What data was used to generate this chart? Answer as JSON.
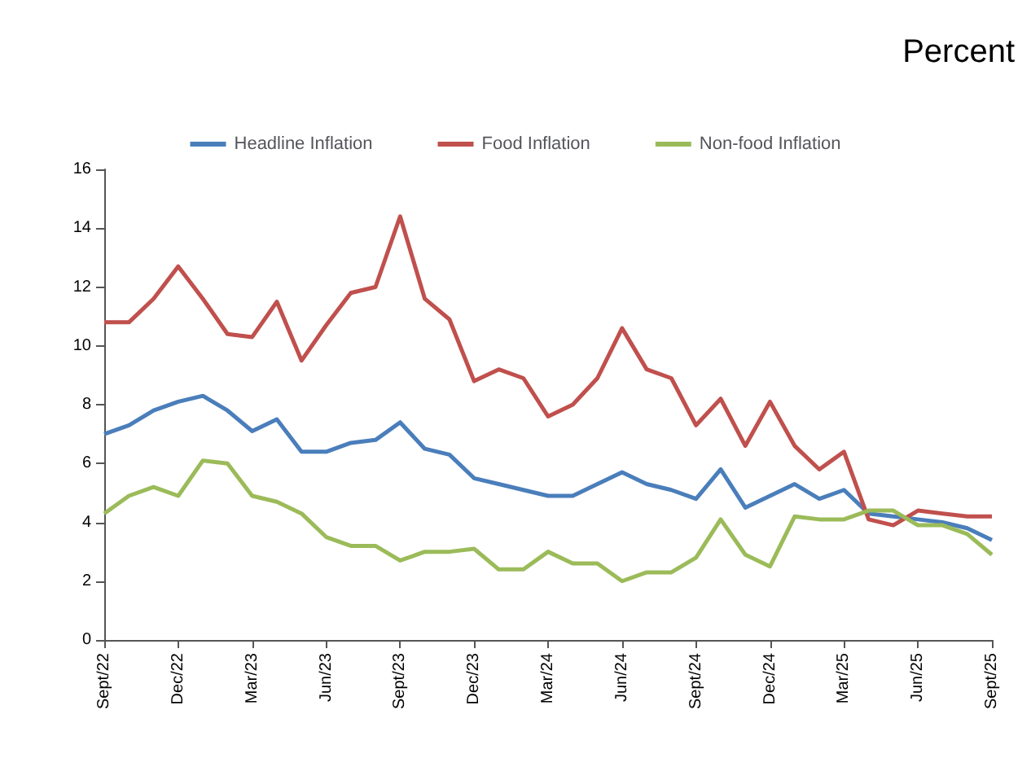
{
  "chart_data": {
    "type": "line",
    "ylabel": "Percent",
    "categories": [
      "Sept/22",
      null,
      null,
      "Dec/22",
      null,
      null,
      "Mar/23",
      null,
      null,
      "Jun/23",
      null,
      null,
      "Sept/23",
      null,
      null,
      "Dec/23",
      null,
      null,
      "Mar/24",
      null,
      null,
      "Jun/24",
      null,
      null,
      "Sept/24",
      null,
      null,
      "Dec/24",
      null,
      null,
      "Mar/25",
      null,
      null,
      "Jun/25",
      null,
      null,
      "Sept/25"
    ],
    "series": [
      {
        "name": "Headline Inflation",
        "color": "#4a7ebb",
        "values": [
          7.0,
          7.3,
          7.8,
          8.1,
          8.3,
          7.8,
          7.1,
          7.5,
          6.4,
          6.4,
          6.7,
          6.8,
          7.4,
          6.5,
          6.3,
          5.5,
          5.3,
          5.1,
          4.9,
          4.9,
          5.3,
          5.7,
          5.3,
          5.1,
          4.8,
          5.8,
          4.5,
          4.9,
          5.3,
          4.8,
          5.1,
          4.3,
          4.2,
          4.1,
          4.0,
          3.8,
          3.4
        ]
      },
      {
        "name": "Food Inflation",
        "color": "#c0504d",
        "values": [
          10.8,
          10.8,
          11.6,
          12.7,
          11.6,
          10.4,
          10.3,
          11.5,
          9.5,
          10.7,
          11.8,
          12.0,
          14.4,
          11.6,
          10.9,
          8.8,
          9.2,
          8.9,
          7.6,
          8.0,
          8.9,
          10.6,
          9.2,
          8.9,
          7.3,
          8.2,
          6.6,
          8.1,
          6.6,
          5.8,
          6.4,
          4.1,
          3.9,
          4.4,
          4.3,
          4.2,
          4.2
        ]
      },
      {
        "name": "Non-food Inflation",
        "color": "#9bbb59",
        "values": [
          4.3,
          4.9,
          5.2,
          4.9,
          6.1,
          6.0,
          4.9,
          4.7,
          4.3,
          3.5,
          3.2,
          3.2,
          2.7,
          3.0,
          3.0,
          3.1,
          2.4,
          2.4,
          3.0,
          2.6,
          2.6,
          2.0,
          2.3,
          2.3,
          2.8,
          4.1,
          2.9,
          2.5,
          4.2,
          4.1,
          4.1,
          4.4,
          4.4,
          3.9,
          3.9,
          3.6,
          2.9
        ]
      }
    ],
    "ylim": [
      0,
      16
    ],
    "yticks": [
      0,
      2,
      4,
      6,
      8,
      10,
      12,
      14,
      16
    ],
    "grid": false,
    "legend": "top",
    "marker": "none",
    "line_style": "solid"
  }
}
